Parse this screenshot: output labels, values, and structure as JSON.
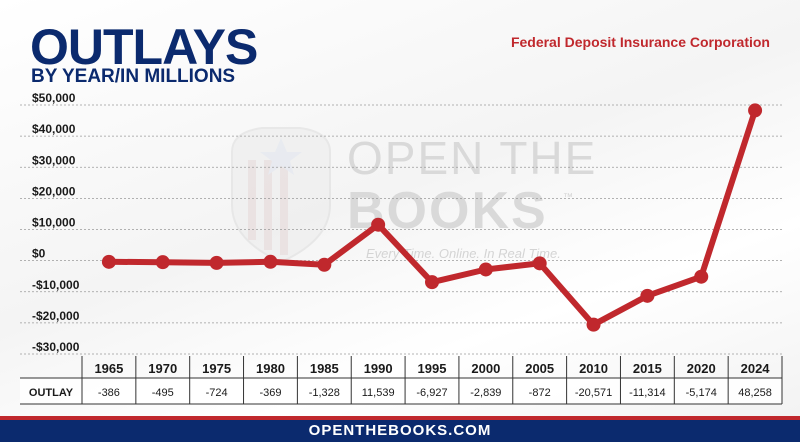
{
  "header": {
    "title": "OUTLAYS",
    "subtitle": "BY YEAR/IN MILLIONS",
    "agency": "Federal Deposit Insurance Corporation"
  },
  "watermark": {
    "line1": "OPEN THE",
    "line2": "BOOKS",
    "trademark": "™",
    "tagline": "Every Time. Online. In Real Time."
  },
  "footer": {
    "text": "OPENTHEBOOKS.COM"
  },
  "colors": {
    "title_navy": "#0b2a6e",
    "accent_red": "#c0282d",
    "line_red": "#c0282d",
    "grid": "#9a9a9a"
  },
  "chart_data": {
    "type": "line",
    "title": "OUTLAYS",
    "subtitle": "BY YEAR/IN MILLIONS",
    "categories": [
      "1965",
      "1970",
      "1975",
      "1980",
      "1985",
      "1990",
      "1995",
      "2000",
      "2005",
      "2010",
      "2015",
      "2020",
      "2024"
    ],
    "series": [
      {
        "name": "OUTLAY",
        "values": [
          -386,
          -495,
          -724,
          -369,
          -1328,
          11539,
          -6927,
          -2839,
          -872,
          -20571,
          -11314,
          -5174,
          48258
        ]
      }
    ],
    "table_row_label": "OUTLAY",
    "table_values": [
      "-386",
      "-495",
      "-724",
      "-369",
      "-1,328",
      "11,539",
      "-6,927",
      "-2,839",
      "-872",
      "-20,571",
      "-11,314",
      "-5,174",
      "48,258"
    ],
    "yticks": [
      50000,
      40000,
      30000,
      20000,
      10000,
      0,
      -10000,
      -20000,
      -30000
    ],
    "ytick_labels": [
      "$50,000",
      "$40,000",
      "$30,000",
      "$20,000",
      "$10,000",
      "$0",
      "-$10,000",
      "-$20,000",
      "-$30,000"
    ],
    "ylim": [
      -30000,
      50000
    ],
    "grid": true,
    "legend": "none"
  }
}
